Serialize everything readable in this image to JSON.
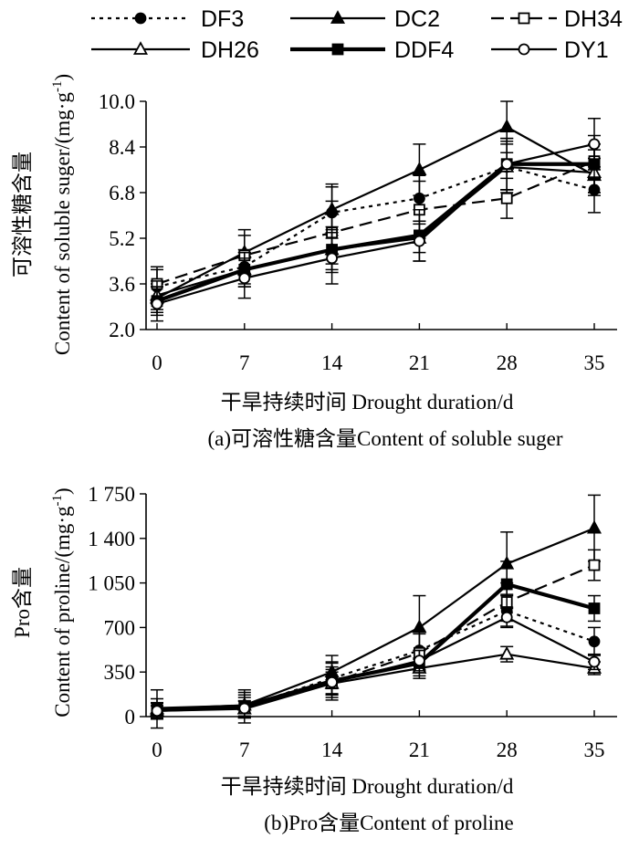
{
  "legend": {
    "items": [
      {
        "name": "DF3",
        "marker": "circle-filled",
        "dash": "dotted"
      },
      {
        "name": "DC2",
        "marker": "triangle-filled",
        "dash": "solid"
      },
      {
        "name": "DH34",
        "marker": "square-open",
        "dash": "dashed"
      },
      {
        "name": "DH26",
        "marker": "triangle-open",
        "dash": "solid"
      },
      {
        "name": "DDF4",
        "marker": "square-filled",
        "dash": "solid-thick"
      },
      {
        "name": "DY1",
        "marker": "circle-open",
        "dash": "solid"
      }
    ]
  },
  "chart_data": [
    {
      "type": "line",
      "id": "a",
      "x": [
        0,
        7,
        14,
        21,
        28,
        35
      ],
      "xticks": [
        "0",
        "7",
        "14",
        "21",
        "28",
        "35"
      ],
      "yticks": [
        "2.0",
        "3.6",
        "5.2",
        "6.8",
        "8.4",
        "10.0"
      ],
      "ylim": [
        2.0,
        10.0
      ],
      "ylabel_cn": "可溶性糖含量",
      "ylabel_en": "Content of soluble suger/(mg·g",
      "ylabel_sup": "-1",
      "ylabel_end": ")",
      "xlabel": "干旱持续时间 Drought duration/d",
      "caption": "(a)可溶性糖含量Content of soluble suger",
      "series": [
        {
          "name": "DF3",
          "values": [
            3.5,
            4.2,
            6.1,
            6.6,
            7.7,
            6.9
          ],
          "errors": [
            0.6,
            0.6,
            0.9,
            0.8,
            0.9,
            0.8
          ]
        },
        {
          "name": "DC2",
          "values": [
            3.1,
            4.7,
            6.2,
            7.6,
            9.1,
            7.4
          ],
          "errors": [
            0.5,
            0.8,
            0.9,
            0.9,
            0.9,
            0.6
          ]
        },
        {
          "name": "DH34",
          "values": [
            3.6,
            4.6,
            5.4,
            6.2,
            6.6,
            7.9
          ],
          "errors": [
            0.6,
            0.7,
            1.1,
            1.0,
            0.7,
            0.6
          ]
        },
        {
          "name": "DH26",
          "values": [
            3.2,
            4.1,
            4.8,
            5.2,
            7.7,
            7.5
          ],
          "errors": [
            0.5,
            0.6,
            0.7,
            0.5,
            0.8,
            0.8
          ]
        },
        {
          "name": "DDF4",
          "values": [
            3.0,
            4.1,
            4.8,
            5.3,
            7.8,
            7.8
          ],
          "errors": [
            0.5,
            0.6,
            0.8,
            0.9,
            0.9,
            1.0
          ]
        },
        {
          "name": "DY1",
          "values": [
            2.9,
            3.8,
            4.5,
            5.1,
            7.8,
            8.5
          ],
          "errors": [
            0.6,
            0.7,
            0.9,
            0.7,
            0.9,
            0.9
          ]
        }
      ]
    },
    {
      "type": "line",
      "id": "b",
      "x": [
        0,
        7,
        14,
        21,
        28,
        35
      ],
      "xticks": [
        "0",
        "7",
        "14",
        "21",
        "28",
        "35"
      ],
      "yticks": [
        "0",
        "350",
        "700",
        "1 050",
        "1 400",
        "1 750"
      ],
      "ylim": [
        0,
        1750
      ],
      "ylabel_cn": "Pro含量",
      "ylabel_en": "Content of proline/(mg·g",
      "ylabel_sup": "-1",
      "ylabel_end": ")",
      "xlabel": "干旱持续时间 Drought duration/d",
      "caption": "(b)Pro含量Content of proline",
      "series": [
        {
          "name": "DF3",
          "values": [
            50,
            80,
            300,
            520,
            830,
            590
          ],
          "errors": [
            60,
            90,
            120,
            150,
            130,
            110
          ]
        },
        {
          "name": "DC2",
          "values": [
            60,
            90,
            350,
            700,
            1200,
            1480
          ],
          "errors": [
            80,
            100,
            130,
            250,
            250,
            260
          ]
        },
        {
          "name": "DH34",
          "values": [
            55,
            70,
            270,
            500,
            900,
            1190
          ],
          "errors": [
            50,
            80,
            120,
            150,
            150,
            120
          ]
        },
        {
          "name": "DH26",
          "values": [
            45,
            60,
            260,
            380,
            490,
            380
          ],
          "errors": [
            40,
            60,
            90,
            80,
            60,
            50
          ]
        },
        {
          "name": "DDF4",
          "values": [
            60,
            80,
            280,
            420,
            1040,
            850
          ],
          "errors": [
            150,
            130,
            150,
            100,
            180,
            100
          ]
        },
        {
          "name": "DY1",
          "values": [
            45,
            65,
            270,
            440,
            780,
            430
          ],
          "errors": [
            40,
            60,
            100,
            80,
            70,
            60
          ]
        }
      ]
    }
  ]
}
